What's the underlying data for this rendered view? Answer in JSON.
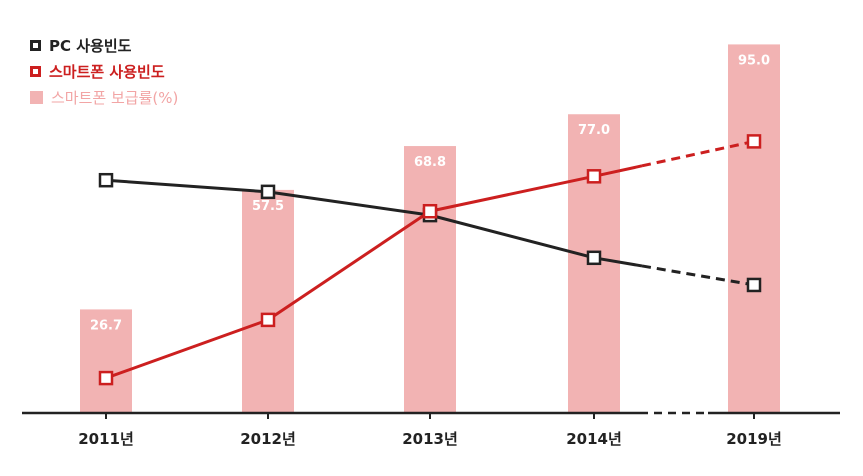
{
  "chart_data": {
    "type": "bar+line",
    "categories": [
      "2011년",
      "2012년",
      "2013년",
      "2014년",
      "2019년"
    ],
    "bars": {
      "name": "스마트폰 보급률(%)",
      "values": [
        26.7,
        57.5,
        68.8,
        77.0,
        95.0
      ],
      "labels": [
        "26.7",
        "57.5",
        "68.8",
        "77.0",
        "95.0"
      ],
      "color": "#f2b3b3"
    },
    "series": [
      {
        "name": "PC 사용빈도",
        "values": [
          60,
          57,
          51,
          40,
          33
        ],
        "color": "#222222"
      },
      {
        "name": "스마트폰 사용빈도",
        "values": [
          9,
          24,
          52,
          61,
          70
        ],
        "color": "#cc1f1f"
      }
    ],
    "ylim": [
      0,
      100
    ],
    "dashed_last_segment": true,
    "legend_position": "top-left",
    "grid": false
  }
}
